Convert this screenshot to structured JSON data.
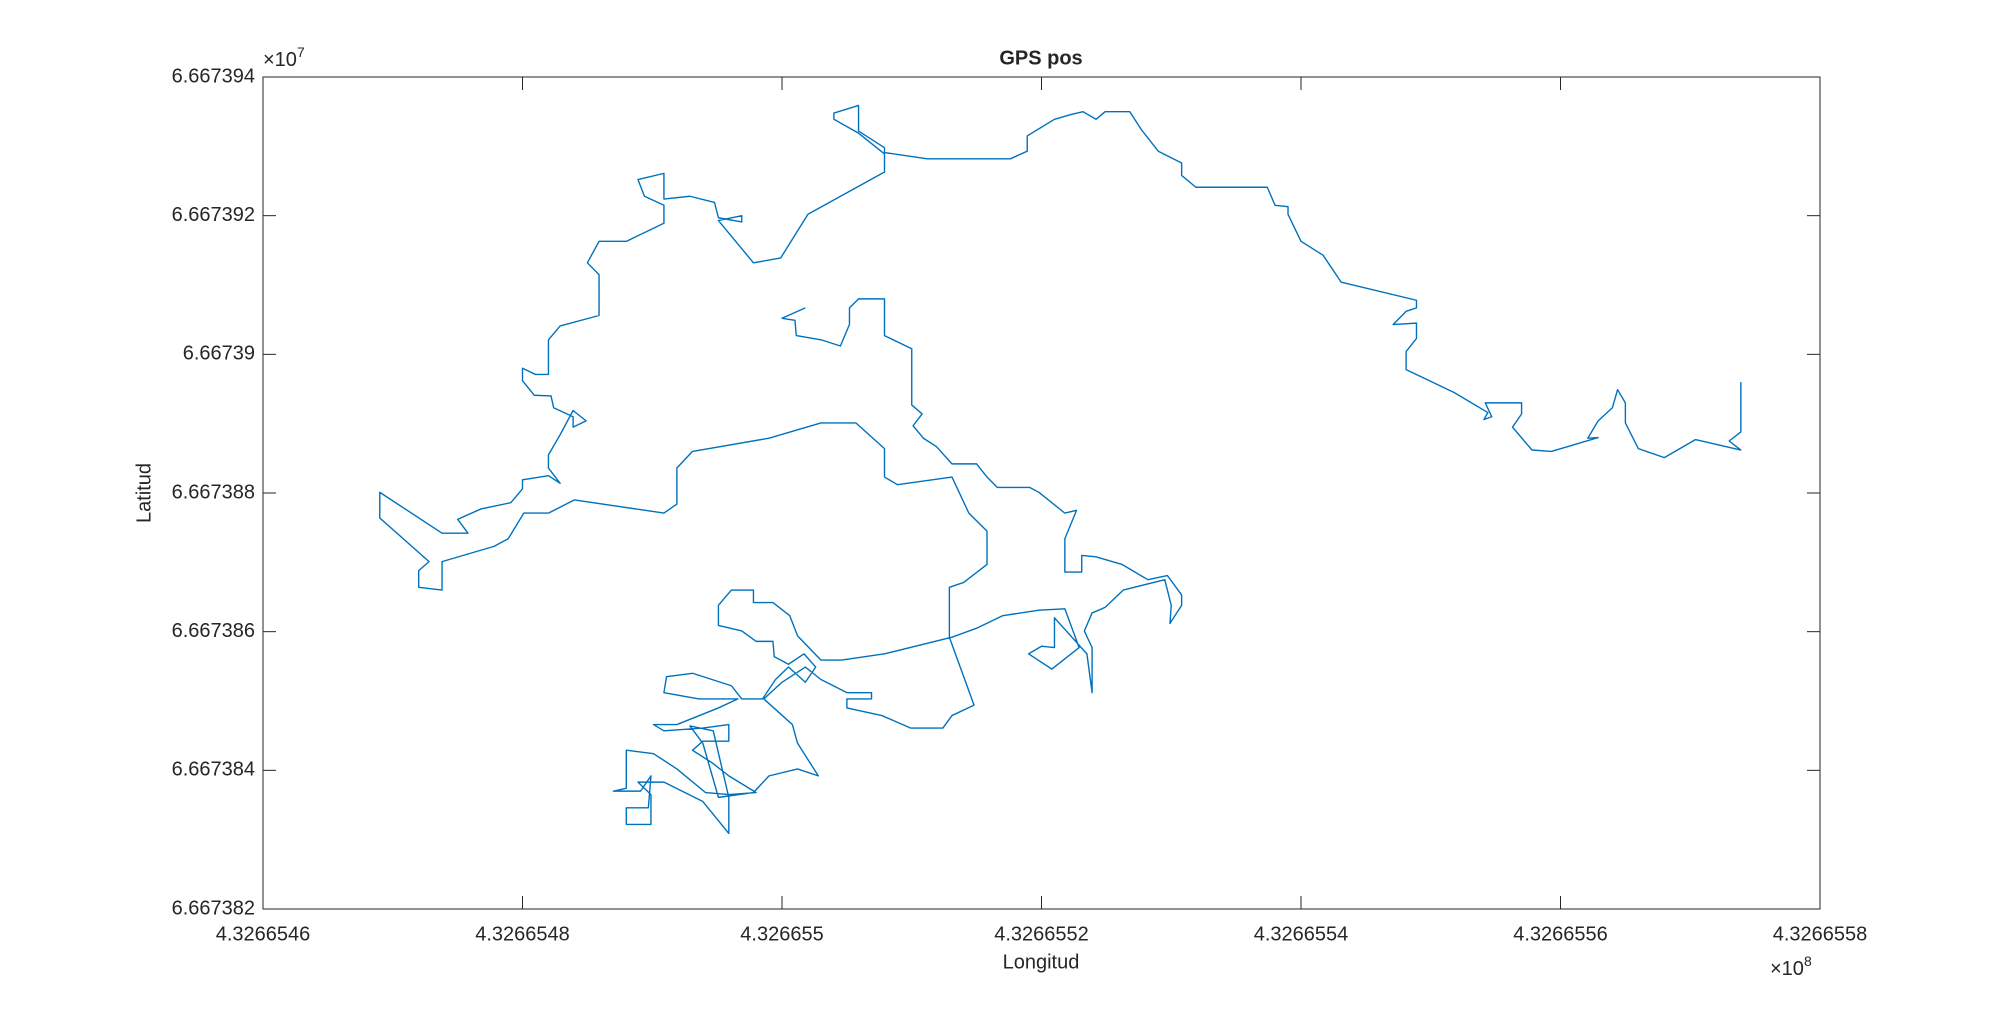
{
  "chart_data": {
    "type": "line",
    "title": "GPS pos",
    "x_label": "Longitud",
    "y_label": "Latitud",
    "x_multiplier": {
      "base": "×10",
      "exponent": "8"
    },
    "y_multiplier": {
      "base": "×10",
      "exponent": "7"
    },
    "color": "#0072bd",
    "xlim": [
      4.3266546,
      4.3266558
    ],
    "xticks": [
      4.3266546,
      4.3266548,
      4.326655,
      4.3266552,
      4.3266554,
      4.3266556,
      4.3266558
    ],
    "ylim": [
      6.667382,
      6.667394
    ],
    "yticks": [
      6.667382,
      6.667384,
      6.667386,
      6.667388,
      6.66739,
      6.667392,
      6.667394
    ],
    "grid": false,
    "x": [
      4.326655018,
      4.326655,
      4.32665501,
      4.326655011,
      4.32665503,
      4.326655045,
      4.326655052,
      4.326655052,
      4.326655059,
      4.326655079,
      4.326655079,
      4.3266551,
      4.3266551,
      4.326655108,
      4.326655101,
      4.326655109,
      4.326655119,
      4.326655131,
      4.32665515,
      4.326655158,
      4.326655166,
      4.326655191,
      4.326655198,
      4.326655218,
      4.326655227,
      4.326655218,
      4.326655218,
      4.326655231,
      4.326655231,
      4.326655242,
      4.326655262,
      4.326655282,
      4.326655297,
      4.326655308,
      4.326655308,
      4.326655299,
      4.3266553,
      4.326655295,
      4.326655263,
      4.326655249,
      4.326655239,
      4.326655233,
      4.326655239,
      4.326655239,
      4.326655235,
      4.32665521,
      4.32665521,
      4.3266552,
      4.32665519,
      4.326655208,
      4.326655229,
      4.326655218,
      4.326655198,
      4.32665517,
      4.32665515,
      4.326655131,
      4.326655079,
      4.326655046,
      4.32665503,
      4.326655012,
      4.326655006,
      4.326654993,
      4.326654978,
      4.326654978,
      4.326654961,
      4.326654951,
      4.326654951,
      4.326654969,
      4.32665498,
      4.326654993,
      4.326654994,
      4.326655005,
      4.326655017,
      4.326655026,
      4.326655018,
      4.326655005,
      4.326654995,
      4.326654985,
      4.326654969,
      4.326654961,
      4.326654931,
      4.326654911,
      4.326654909,
      4.326654936,
      4.326654966,
      4.326654951,
      4.326654919,
      4.326654901,
      4.326654909,
      4.326654939,
      4.326654959,
      4.326654959,
      4.326654939,
      4.326654931,
      4.326654946,
      4.326654959,
      4.32665498,
      4.326654959,
      4.326654941,
      4.326654919,
      4.326654901,
      4.32665488,
      4.32665488,
      4.32665487,
      4.326654891,
      4.326654899,
      4.326654897,
      4.32665488,
      4.32665488,
      4.326654899,
      4.326654899,
      4.326654889,
      4.326654909,
      4.326654939,
      4.326654959,
      4.326654959,
      4.326654947,
      4.326654929,
      4.326654939,
      4.326654951,
      4.326654978,
      4.32665499,
      4.326655012,
      4.326655028,
      4.326655012,
      4.326655008,
      4.326654986,
      4.326655,
      4.326655018,
      4.32665503,
      4.32665505,
      4.326655069,
      4.326655069,
      4.32665505,
      4.32665505,
      4.326655077,
      4.326655099,
      4.326655124,
      4.326655131,
      4.326655148,
      4.326655129,
      4.326655129,
      4.32665514,
      4.326655158,
      4.326655158,
      4.326655144,
      4.326655131,
      4.326655089,
      4.326655079,
      4.326655079,
      4.326655057,
      4.32665503,
      4.32665499,
      4.326654931,
      4.326654919,
      4.326654919,
      4.326654909,
      4.32665484,
      4.32665482,
      4.326654801,
      4.326654789,
      4.326654778,
      4.326654758,
      4.326654738,
      4.326654738,
      4.32665472,
      4.32665472,
      4.326654728,
      4.32665469,
      4.32665469,
      4.326654738,
      4.326654758,
      4.32665475,
      4.326654768,
      4.326654791,
      4.3266548,
      4.3266548,
      4.32665482,
      4.326654829,
      4.32665482,
      4.32665482,
      4.326654829,
      4.326654839,
      4.326654849,
      4.326654839,
      4.326654839,
      4.326654824,
      4.326654822,
      4.326654809,
      4.3266548,
      4.3266548,
      4.32665481,
      4.32665482,
      4.32665482,
      4.326654829,
      4.326654859,
      4.326654859,
      4.32665485,
      4.326654859,
      4.32665488,
      4.326654909,
      4.326654909,
      4.326654894,
      4.326654889,
      4.326654909,
      4.326654909,
      4.326654929,
      4.326654948,
      4.326654951,
      4.326654969,
      4.326654969,
      4.326654951,
      4.326654978,
      4.326654999,
      4.32665502,
      4.326655079,
      4.326655079,
      4.326655059,
      4.32665504,
      4.32665504,
      4.326655059,
      4.326655059,
      4.326655079,
      4.326655079,
      4.326655112,
      4.326655176,
      4.326655189,
      4.326655189,
      4.32665521,
      4.326655223,
      4.326655232,
      4.326655242,
      4.326655249,
      4.326655268,
      4.326655277,
      4.32665529,
      4.326655308,
      4.326655308,
      4.326655319,
      4.326655374,
      4.32665538,
      4.32665539,
      4.32665539,
      4.3266554,
      4.326655417,
      4.326655431,
      4.326655489,
      4.326655489,
      4.326655481,
      4.326655471,
      4.326655489,
      4.326655489,
      4.326655481,
      4.326655481,
      4.326655518,
      4.326655544,
      4.326655541,
      4.326655547,
      4.326655542,
      4.32665557,
      4.32665557,
      4.326655563,
      4.326655578,
      4.326655593,
      4.326655629,
      4.326655621,
      4.326655629,
      4.32665564,
      4.326655644,
      4.32665565,
      4.32665565,
      4.32665566,
      4.32665568,
      4.326655704,
      4.326655739,
      4.32665573,
      4.326655739,
      4.326655739
    ],
    "values": [
      6.66739067,
      6.66739052,
      6.66739049,
      6.66739027,
      6.66739021,
      6.66739012,
      6.66739043,
      6.66739067,
      6.6673908,
      6.6673908,
      6.66739027,
      6.66739008,
      6.66738927,
      6.66738914,
      6.66738897,
      6.66738879,
      6.66738867,
      6.66738842,
      6.66738842,
      6.66738823,
      6.66738808,
      6.66738808,
      6.66738801,
      6.66738771,
      6.66738775,
      6.66738734,
      6.66738686,
      6.66738686,
      6.6673871,
      6.66738708,
      6.66738697,
      6.66738675,
      6.66738681,
      6.66738653,
      6.66738638,
      6.66738612,
      6.66738638,
      6.66738675,
      6.6673866,
      6.66738635,
      6.66738627,
      6.66738601,
      6.66738577,
      6.66738512,
      6.66738568,
      6.6673862,
      6.66738577,
      6.66738579,
      6.66738568,
      6.66738546,
      6.66738577,
      6.66738633,
      6.66738631,
      6.66738623,
      6.66738605,
      6.66738592,
      6.66738568,
      6.66738559,
      6.66738559,
      6.66738594,
      6.66738623,
      6.66738642,
      6.66738642,
      6.6673866,
      6.6673866,
      6.66738638,
      6.66738609,
      6.66738601,
      6.66738586,
      6.66738586,
      6.66738564,
      6.66738553,
      6.66738568,
      6.66738549,
      6.66738527,
      6.66738549,
      6.66738531,
      6.66738503,
      6.66738503,
      6.66738522,
      6.6673854,
      6.66738535,
      6.66738512,
      6.66738503,
      6.66738503,
      6.6673849,
      6.66738466,
      6.66738466,
      6.66738457,
      6.66738461,
      6.66738466,
      6.66738442,
      6.66738442,
      6.66738429,
      6.66738411,
      6.66738392,
      6.66738368,
      6.66738365,
      6.66738368,
      6.66738402,
      6.66738424,
      6.66738429,
      6.66738374,
      6.6673837,
      6.6673837,
      6.66738392,
      6.66738346,
      6.66738346,
      6.66738322,
      6.66738322,
      6.66738365,
      6.66738383,
      6.66738383,
      6.66738355,
      6.66738309,
      6.66738361,
      6.66738457,
      6.66738464,
      6.66738439,
      6.66738361,
      6.66738368,
      6.66738392,
      6.66738402,
      6.66738392,
      6.66738439,
      6.66738466,
      6.66738503,
      6.66738527,
      6.66738549,
      6.66738531,
      6.66738512,
      6.66738512,
      6.66738503,
      6.66738503,
      6.6673849,
      6.66738479,
      6.66738461,
      6.66738461,
      6.66738479,
      6.66738494,
      6.66738592,
      6.66738664,
      6.66738671,
      6.66738697,
      6.66738745,
      6.66738771,
      6.66738823,
      6.66738812,
      6.66738823,
      6.66738864,
      6.66738901,
      6.66738901,
      6.66738879,
      6.6673886,
      6.66738836,
      6.66738784,
      6.66738771,
      6.6673879,
      6.66738771,
      6.66738771,
      6.66738734,
      6.66738723,
      6.66738712,
      6.66738701,
      6.6673866,
      6.66738664,
      6.66738688,
      6.66738701,
      6.66738764,
      6.66738801,
      6.66738742,
      6.66738742,
      6.66738762,
      6.66738777,
      6.66738786,
      6.66738806,
      6.66738819,
      6.66738825,
      6.66738814,
      6.66738836,
      6.66738855,
      6.66738884,
      6.66738919,
      6.66738904,
      6.66738895,
      6.6673891,
      6.66738923,
      6.6673894,
      6.66738941,
      6.66738962,
      6.6673898,
      6.66738971,
      6.66738971,
      6.66739021,
      6.66739041,
      6.66739056,
      6.66739115,
      6.66739132,
      6.66739163,
      6.66739163,
      6.66739189,
      6.66739215,
      6.66739228,
      6.66739252,
      6.66739261,
      6.66739224,
      6.66739228,
      6.66739219,
      6.66739197,
      6.66739191,
      6.667392,
      6.66739193,
      6.66739132,
      6.66739139,
      6.66739202,
      6.66739263,
      6.66739289,
      6.66739319,
      6.66739339,
      6.66739348,
      6.66739359,
      6.66739322,
      6.66739298,
      6.66739291,
      6.66739282,
      6.66739282,
      6.66739293,
      6.66739315,
      6.66739339,
      6.66739346,
      6.6673935,
      6.66739339,
      6.6673935,
      6.6673935,
      6.66739324,
      6.66739293,
      6.66739276,
      6.66739258,
      6.66739241,
      6.66739241,
      6.66739215,
      6.66739213,
      6.66739202,
      6.66739163,
      6.66739143,
      6.66739104,
      6.66739078,
      6.66739067,
      6.66739062,
      6.66739043,
      6.66739045,
      6.66739023,
      6.66739004,
      6.66738978,
      6.66738945,
      6.66738916,
      6.66738906,
      6.6673891,
      6.6673893,
      6.6673893,
      6.66738914,
      6.66738895,
      6.66738862,
      6.6673886,
      6.6673888,
      6.66738879,
      6.66738904,
      6.66738923,
      6.66738949,
      6.6673893,
      6.66738901,
      6.66738864,
      6.66738851,
      6.66738877,
      6.66738862,
      6.66738875,
      6.66738888,
      6.6673896
    ]
  }
}
